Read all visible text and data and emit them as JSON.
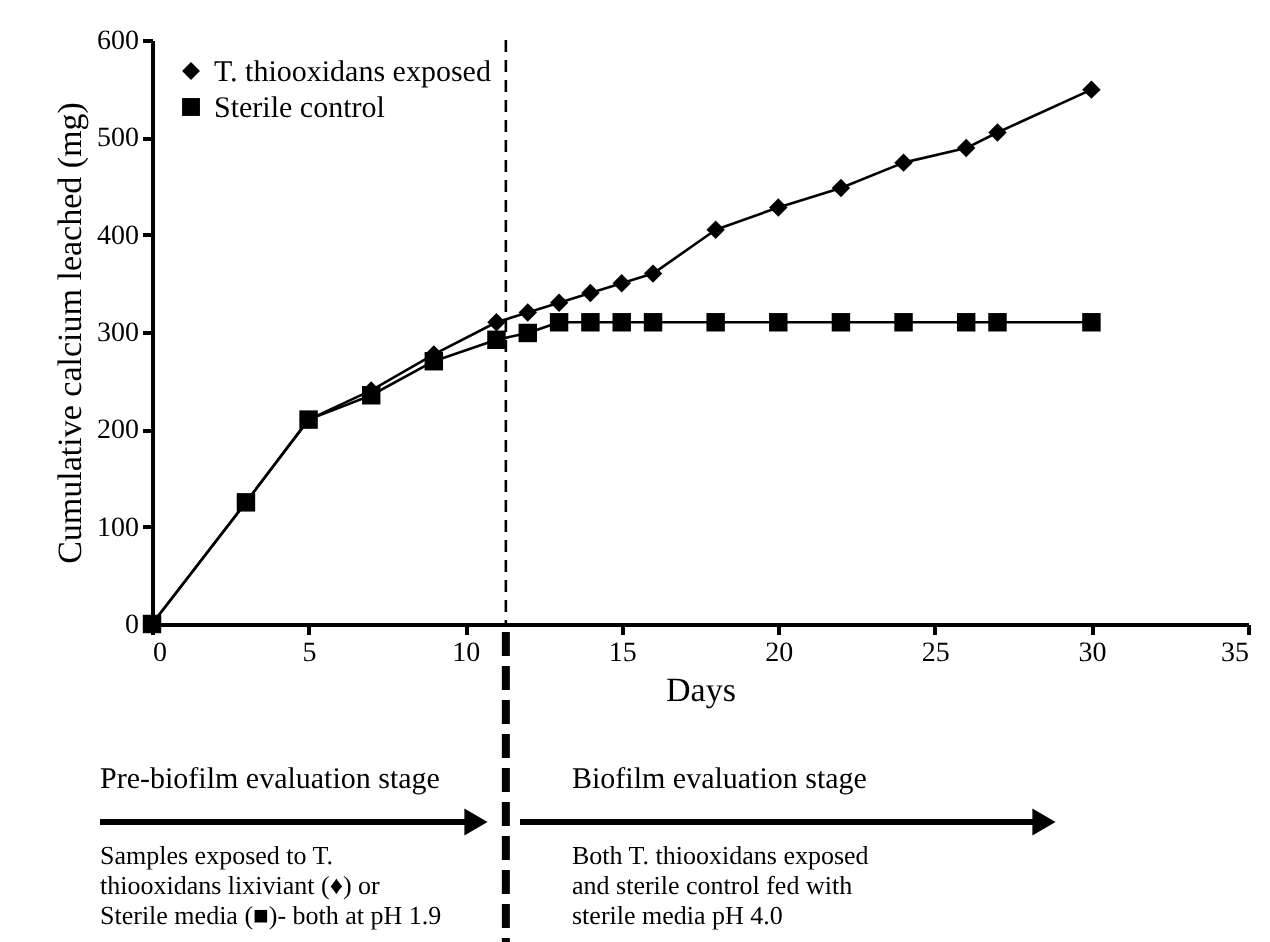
{
  "chart_data": {
    "type": "line",
    "xlabel": "Days",
    "ylabel": "Cumulative calcium leached (mg)",
    "xlim": [
      0,
      35
    ],
    "xticks": [
      0,
      5,
      10,
      15,
      20,
      25,
      30,
      35
    ],
    "ylim": [
      0,
      600
    ],
    "yticks": [
      0,
      100,
      200,
      300,
      400,
      500,
      600
    ],
    "grid": false,
    "legend": "top left",
    "line_style": "solid",
    "series": [
      {
        "name": "T. thiooxidans exposed",
        "color": "#000000",
        "marker": "diamond",
        "x": [
          0,
          3,
          5,
          7,
          9,
          11,
          12,
          13,
          14,
          15,
          16,
          18,
          20,
          22,
          24,
          26,
          27,
          30
        ],
        "values": [
          0,
          125,
          210,
          240,
          277,
          310,
          320,
          330,
          340,
          350,
          360,
          405,
          428,
          448,
          474,
          489,
          505,
          549
        ]
      },
      {
        "name": "Sterile control",
        "color": "#000000",
        "marker": "square",
        "x": [
          0,
          3,
          5,
          7,
          9,
          11,
          12,
          13,
          14,
          15,
          16,
          18,
          20,
          22,
          24,
          26,
          27,
          30
        ],
        "values": [
          0,
          125,
          210,
          235,
          270,
          292,
          299,
          310,
          310,
          310,
          310,
          310,
          310,
          310,
          310,
          310,
          310,
          310
        ]
      }
    ],
    "ref_lines": [
      {
        "axis": "x",
        "value": 11.3,
        "color": "#000000",
        "line_style": "dashed"
      }
    ],
    "annotations": [
      "Pre-biofilm evaluation stage",
      "Biofilm evaluation stage",
      "Samples exposed to T.\nthiooxidans lixiviant (♦) or\nSterile media (■)- both at pH 1.9",
      "Both T. thiooxidans exposed\nand sterile control fed with\nsterile media pH 4.0"
    ]
  }
}
